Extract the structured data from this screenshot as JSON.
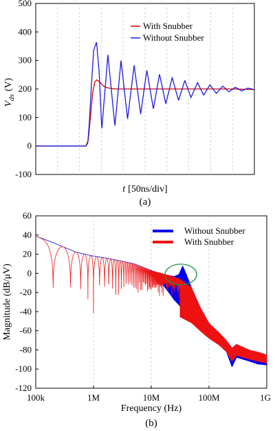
{
  "chart_data": [
    {
      "type": "line",
      "xlabel_italic": "t",
      "xlabel_rest": "[50ns/div]",
      "ylabel_sym": "V",
      "ylabel_sub": "ds",
      "ylabel_unit": "(V)",
      "ylim": [
        -100,
        500
      ],
      "yticks": [
        "500",
        "400",
        "300",
        "200",
        "100",
        "0",
        "-100"
      ],
      "ytick_values": [
        500,
        400,
        300,
        200,
        100,
        0,
        -100
      ],
      "x_divisions": 10,
      "grid": "vertical-dashed",
      "legend_position": "top-right",
      "caption": "(a)",
      "series": [
        {
          "name": "With Snubber",
          "color": "#d40000",
          "x_divs": [
            0.0,
            2.3,
            2.4,
            2.5,
            2.6,
            2.7,
            2.8,
            2.9,
            3.0,
            3.1,
            3.2,
            3.35,
            3.5,
            3.7,
            4.0,
            4.5,
            5.0,
            6.0,
            7.0,
            8.0,
            9.0,
            10.0
          ],
          "values": [
            0,
            0,
            20,
            100,
            185,
            225,
            232,
            226,
            218,
            210,
            206,
            203,
            201,
            200,
            200,
            200,
            200,
            200,
            200,
            200,
            200,
            198
          ]
        },
        {
          "name": "Without Snubber",
          "color": "#1a1adc",
          "x_divs": [
            0.0,
            2.3,
            2.38,
            2.45,
            2.55,
            2.65,
            2.78,
            2.9,
            3.02,
            3.3,
            3.62,
            3.9,
            4.2,
            4.5,
            4.8,
            5.08,
            5.38,
            5.66,
            5.95,
            6.24,
            6.53,
            6.82,
            7.1,
            7.4,
            7.68,
            7.97,
            8.26,
            8.55,
            8.84,
            9.13,
            9.42,
            9.7,
            10.0
          ],
          "values": [
            0,
            0,
            10,
            80,
            220,
            335,
            365,
            260,
            58,
            320,
            70,
            300,
            95,
            283,
            112,
            266,
            130,
            252,
            148,
            240,
            160,
            230,
            170,
            222,
            178,
            215,
            184,
            210,
            190,
            206,
            193,
            203,
            198
          ]
        }
      ]
    },
    {
      "type": "line",
      "xlabel": "Frequency (Hz)",
      "ylabel": "Magnitude (dB/μV)",
      "x_scale": "log",
      "xlim_hz": [
        100000,
        1000000000
      ],
      "xticks": [
        "100k",
        "1M",
        "10M",
        "100M",
        "1G"
      ],
      "xtick_values_hz": [
        100000,
        1000000,
        10000000,
        100000000,
        1000000000
      ],
      "ylim": [
        -120,
        60
      ],
      "yticks": [
        "60",
        "40",
        "20",
        "0",
        "-20",
        "-40",
        "-60",
        "-80",
        "-100",
        "-120"
      ],
      "ytick_values": [
        60,
        40,
        20,
        0,
        -20,
        -40,
        -60,
        -80,
        -100,
        -120
      ],
      "grid": "vertical-dashed",
      "legend_position": "top-right",
      "caption": "(b)",
      "annotation": "circle around resonance peak near 35 MHz",
      "series": [
        {
          "name": "Without Snubber",
          "color": "#0000ee",
          "envelope_freq_hz": [
            100000,
            200000,
            500000,
            1000000,
            2000000,
            5000000,
            10000000,
            15000000,
            20000000,
            25000000,
            30000000,
            35000000,
            40000000,
            50000000,
            70000000,
            100000000,
            150000000,
            200000000,
            250000000,
            300000000,
            500000000,
            700000000,
            1000000000
          ],
          "upper_db": [
            39,
            32,
            22,
            18,
            15,
            10,
            3,
            0,
            -2,
            -3,
            -1,
            8,
            0,
            -15,
            -35,
            -52,
            -62,
            -70,
            -78,
            -74,
            -80,
            -82,
            -85
          ],
          "lower_db": [
            39,
            32,
            22,
            18,
            15,
            10,
            3,
            -10,
            -20,
            -28,
            -33,
            -38,
            -42,
            -50,
            -60,
            -68,
            -75,
            -82,
            -98,
            -88,
            -92,
            -95,
            -96
          ]
        },
        {
          "name": "With Snubber",
          "color": "#ee1111",
          "envelope_freq_hz": [
            100000,
            200000,
            500000,
            1000000,
            2000000,
            5000000,
            10000000,
            15000000,
            20000000,
            30000000,
            50000000,
            70000000,
            100000000,
            150000000,
            200000000,
            250000000,
            300000000,
            500000000,
            700000000,
            1000000000
          ],
          "upper_db": [
            39,
            32,
            22,
            18,
            15,
            10,
            3,
            0,
            -2,
            -5,
            -15,
            -35,
            -52,
            -62,
            -70,
            -78,
            -74,
            -80,
            -82,
            -85
          ],
          "lower_db": [
            39,
            -42,
            -42,
            -42,
            -42,
            -42,
            -42,
            -42,
            -42,
            -45,
            -52,
            -60,
            -68,
            -75,
            -82,
            -92,
            -86,
            -90,
            -92,
            -94
          ]
        }
      ]
    }
  ]
}
